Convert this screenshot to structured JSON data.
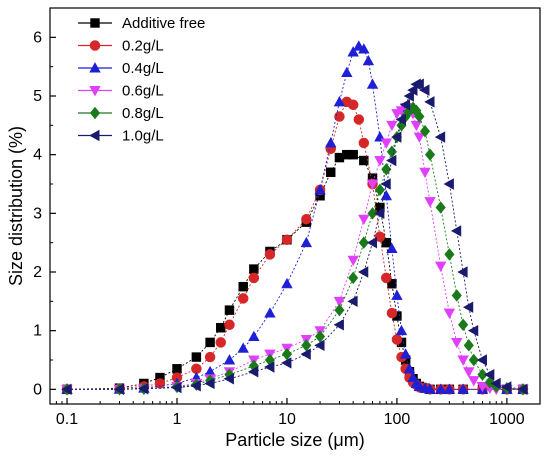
{
  "chart_data": {
    "type": "scatter",
    "xlabel": "Particle size (μm)",
    "ylabel": "Size distribution (%)",
    "xscale": "log",
    "xlim": [
      0.07,
      2000
    ],
    "ylim": [
      -0.25,
      6.5
    ],
    "xticks": [
      0.1,
      1,
      10,
      100,
      1000
    ],
    "xtick_labels": [
      "0.1",
      "1",
      "10",
      "100",
      "1000"
    ],
    "yticks": [
      0,
      1,
      2,
      3,
      4,
      5,
      6
    ],
    "ytick_labels": [
      "0",
      "1",
      "2",
      "3",
      "4",
      "5",
      "6"
    ],
    "legend_position": "top-left",
    "series": [
      {
        "name": "Additive free",
        "color": "#000000",
        "marker": "square",
        "x": [
          0.1,
          0.3,
          0.5,
          0.7,
          1.0,
          1.5,
          2.0,
          2.5,
          3.0,
          4.0,
          5.0,
          7.0,
          10.0,
          15.0,
          20.0,
          25.0,
          30.0,
          35.0,
          40.0,
          50.0,
          60.0,
          70.0,
          80.0,
          90.0,
          100.0,
          110.0,
          120.0,
          130.0,
          140.0,
          150.0,
          160.0,
          170.0,
          180.0,
          200.0,
          250.0,
          300.0,
          400.0,
          600.0,
          1000.0,
          1400.0
        ],
        "y": [
          0.0,
          0.02,
          0.1,
          0.2,
          0.35,
          0.55,
          0.8,
          1.05,
          1.35,
          1.75,
          2.05,
          2.35,
          2.55,
          2.85,
          3.3,
          3.7,
          3.95,
          4.0,
          4.0,
          3.9,
          3.6,
          3.1,
          2.5,
          1.8,
          1.25,
          0.8,
          0.5,
          0.3,
          0.18,
          0.1,
          0.05,
          0.03,
          0.02,
          0.0,
          0.0,
          0.0,
          0.0,
          0.0,
          0.0,
          0.0
        ]
      },
      {
        "name": "0.2g/L",
        "color": "#d62728",
        "marker": "circle",
        "x": [
          0.1,
          0.3,
          0.5,
          0.7,
          1.0,
          1.5,
          2.0,
          2.5,
          3.0,
          4.0,
          5.0,
          7.0,
          10.0,
          15.0,
          20.0,
          25.0,
          30.0,
          35.0,
          40.0,
          45.0,
          50.0,
          60.0,
          70.0,
          80.0,
          90.0,
          100.0,
          110.0,
          120.0,
          130.0,
          140.0,
          150.0,
          160.0,
          180.0,
          200.0,
          250.0,
          300.0,
          400.0,
          600.0,
          1000.0,
          1400.0
        ],
        "y": [
          0.0,
          0.01,
          0.05,
          0.1,
          0.2,
          0.35,
          0.55,
          0.8,
          1.1,
          1.55,
          1.9,
          2.3,
          2.55,
          2.9,
          3.4,
          4.1,
          4.65,
          4.9,
          4.85,
          4.6,
          4.2,
          3.5,
          2.6,
          1.9,
          1.3,
          0.85,
          0.55,
          0.35,
          0.2,
          0.12,
          0.08,
          0.04,
          0.02,
          0.0,
          0.0,
          0.0,
          0.0,
          0.0,
          0.0,
          0.0
        ]
      },
      {
        "name": "0.4g/L",
        "color": "#1f1fd6",
        "marker": "triangle-up",
        "x": [
          0.1,
          0.3,
          0.5,
          1.0,
          1.5,
          2.0,
          3.0,
          4.0,
          5.0,
          7.0,
          10.0,
          15.0,
          20.0,
          25.0,
          30.0,
          35.0,
          40.0,
          45.0,
          50.0,
          55.0,
          60.0,
          70.0,
          80.0,
          90.0,
          100.0,
          110.0,
          120.0,
          130.0,
          140.0,
          150.0,
          160.0,
          180.0,
          200.0,
          250.0,
          300.0,
          400.0,
          600.0,
          1000.0,
          1400.0
        ],
        "y": [
          0.0,
          0.0,
          0.02,
          0.1,
          0.2,
          0.3,
          0.5,
          0.7,
          0.9,
          1.3,
          1.8,
          2.5,
          3.4,
          4.2,
          4.9,
          5.4,
          5.75,
          5.85,
          5.8,
          5.6,
          5.2,
          4.3,
          3.3,
          2.4,
          1.6,
          1.0,
          0.6,
          0.35,
          0.2,
          0.1,
          0.05,
          0.02,
          0.0,
          0.0,
          0.0,
          0.0,
          0.0,
          0.0,
          0.0
        ]
      },
      {
        "name": "0.6g/L",
        "color": "#e040fb",
        "marker": "triangle-down",
        "x": [
          0.1,
          0.3,
          0.5,
          1.0,
          1.5,
          2.0,
          3.0,
          5.0,
          7.0,
          10.0,
          15.0,
          20.0,
          30.0,
          40.0,
          50.0,
          60.0,
          70.0,
          80.0,
          90.0,
          100.0,
          110.0,
          120.0,
          130.0,
          140.0,
          150.0,
          160.0,
          180.0,
          200.0,
          250.0,
          300.0,
          350.0,
          400.0,
          450.0,
          500.0,
          600.0,
          700.0,
          800.0,
          1000.0,
          1400.0
        ],
        "y": [
          0.0,
          0.0,
          0.01,
          0.05,
          0.1,
          0.18,
          0.3,
          0.5,
          0.6,
          0.7,
          0.85,
          1.0,
          1.5,
          2.2,
          2.9,
          3.5,
          3.9,
          4.2,
          4.5,
          4.7,
          4.75,
          4.8,
          4.8,
          4.7,
          4.5,
          4.3,
          3.7,
          3.2,
          2.1,
          1.3,
          0.8,
          0.5,
          0.3,
          0.15,
          0.05,
          0.02,
          0.0,
          0.0,
          0.0
        ]
      },
      {
        "name": "0.8g/L",
        "color": "#1a7a1a",
        "marker": "diamond",
        "x": [
          0.1,
          0.3,
          0.5,
          1.0,
          1.5,
          2.0,
          3.0,
          5.0,
          7.0,
          10.0,
          15.0,
          20.0,
          30.0,
          40.0,
          50.0,
          60.0,
          70.0,
          80.0,
          90.0,
          100.0,
          110.0,
          120.0,
          130.0,
          140.0,
          150.0,
          160.0,
          180.0,
          200.0,
          250.0,
          300.0,
          350.0,
          400.0,
          450.0,
          500.0,
          600.0,
          700.0,
          800.0,
          1000.0,
          1400.0
        ],
        "y": [
          0.0,
          0.0,
          0.01,
          0.04,
          0.08,
          0.15,
          0.25,
          0.4,
          0.5,
          0.6,
          0.75,
          0.9,
          1.35,
          1.9,
          2.5,
          3.0,
          3.4,
          3.75,
          4.05,
          4.3,
          4.5,
          4.65,
          4.75,
          4.8,
          4.75,
          4.65,
          4.4,
          4.0,
          3.1,
          2.3,
          1.6,
          1.1,
          0.75,
          0.5,
          0.25,
          0.12,
          0.05,
          0.02,
          0.0
        ]
      },
      {
        "name": "1.0g/L",
        "color": "#1a1a6e",
        "marker": "triangle-left",
        "x": [
          0.1,
          0.3,
          0.5,
          1.0,
          1.5,
          2.0,
          3.0,
          5.0,
          7.0,
          10.0,
          15.0,
          20.0,
          30.0,
          40.0,
          50.0,
          60.0,
          70.0,
          80.0,
          90.0,
          100.0,
          110.0,
          120.0,
          130.0,
          140.0,
          150.0,
          160.0,
          180.0,
          200.0,
          250.0,
          300.0,
          350.0,
          400.0,
          450.0,
          500.0,
          600.0,
          700.0,
          800.0,
          1000.0,
          1400.0
        ],
        "y": [
          0.0,
          0.0,
          0.01,
          0.03,
          0.06,
          0.1,
          0.18,
          0.3,
          0.38,
          0.45,
          0.6,
          0.75,
          1.1,
          1.5,
          2.0,
          2.5,
          3.0,
          3.5,
          3.9,
          4.3,
          4.6,
          4.85,
          5.0,
          5.1,
          5.2,
          5.2,
          5.1,
          4.9,
          4.3,
          3.5,
          2.7,
          2.0,
          1.4,
          1.0,
          0.5,
          0.25,
          0.1,
          0.04,
          0.0
        ]
      }
    ]
  }
}
